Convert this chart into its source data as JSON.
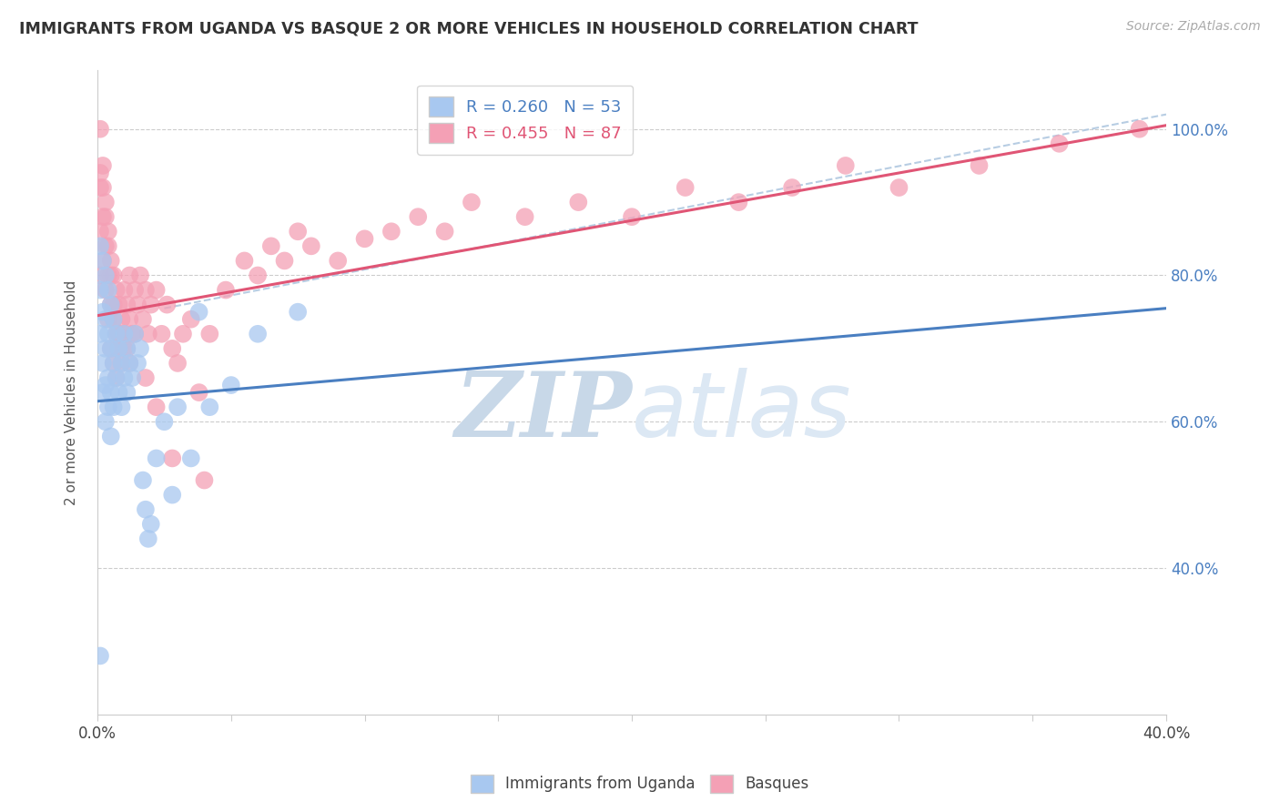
{
  "title": "IMMIGRANTS FROM UGANDA VS BASQUE 2 OR MORE VEHICLES IN HOUSEHOLD CORRELATION CHART",
  "source": "Source: ZipAtlas.com",
  "ylabel_label": "2 or more Vehicles in Household",
  "legend_entries": [
    {
      "label": "R = 0.260   N = 53",
      "color": "#a8c8f0"
    },
    {
      "label": "R = 0.455   N = 87",
      "color": "#f4a0b5"
    }
  ],
  "legend_labels_bottom": [
    "Immigrants from Uganda",
    "Basques"
  ],
  "watermark_zip": "ZIP",
  "watermark_atlas": "atlas",
  "blue_color": "#a8c8f0",
  "pink_color": "#f4a0b5",
  "blue_line_color": "#4a7fc1",
  "pink_line_color": "#e05575",
  "dashed_line_color": "#b0c8e0",
  "xlim": [
    0.0,
    0.4
  ],
  "ylim": [
    0.2,
    1.08
  ],
  "blue_scatter_x": [
    0.001,
    0.001,
    0.001,
    0.002,
    0.002,
    0.002,
    0.002,
    0.003,
    0.003,
    0.003,
    0.003,
    0.003,
    0.004,
    0.004,
    0.004,
    0.004,
    0.005,
    0.005,
    0.005,
    0.005,
    0.006,
    0.006,
    0.006,
    0.007,
    0.007,
    0.008,
    0.008,
    0.009,
    0.009,
    0.01,
    0.01,
    0.011,
    0.011,
    0.012,
    0.013,
    0.014,
    0.015,
    0.016,
    0.017,
    0.018,
    0.019,
    0.02,
    0.022,
    0.025,
    0.028,
    0.03,
    0.035,
    0.038,
    0.042,
    0.05,
    0.06,
    0.075,
    0.001
  ],
  "blue_scatter_y": [
    0.84,
    0.78,
    0.72,
    0.82,
    0.75,
    0.68,
    0.64,
    0.8,
    0.74,
    0.7,
    0.65,
    0.6,
    0.78,
    0.72,
    0.66,
    0.62,
    0.76,
    0.7,
    0.64,
    0.58,
    0.74,
    0.68,
    0.62,
    0.72,
    0.66,
    0.7,
    0.64,
    0.68,
    0.62,
    0.66,
    0.72,
    0.7,
    0.64,
    0.68,
    0.66,
    0.72,
    0.68,
    0.7,
    0.52,
    0.48,
    0.44,
    0.46,
    0.55,
    0.6,
    0.5,
    0.62,
    0.55,
    0.75,
    0.62,
    0.65,
    0.72,
    0.75,
    0.28
  ],
  "pink_scatter_x": [
    0.001,
    0.001,
    0.001,
    0.002,
    0.002,
    0.002,
    0.003,
    0.003,
    0.003,
    0.004,
    0.004,
    0.004,
    0.005,
    0.005,
    0.005,
    0.006,
    0.006,
    0.006,
    0.007,
    0.007,
    0.007,
    0.008,
    0.008,
    0.009,
    0.009,
    0.01,
    0.01,
    0.011,
    0.011,
    0.012,
    0.012,
    0.013,
    0.014,
    0.015,
    0.016,
    0.017,
    0.018,
    0.019,
    0.02,
    0.022,
    0.024,
    0.026,
    0.028,
    0.03,
    0.032,
    0.035,
    0.038,
    0.042,
    0.048,
    0.055,
    0.06,
    0.065,
    0.07,
    0.075,
    0.08,
    0.09,
    0.1,
    0.11,
    0.12,
    0.13,
    0.14,
    0.16,
    0.18,
    0.2,
    0.22,
    0.24,
    0.26,
    0.28,
    0.3,
    0.33,
    0.36,
    0.39,
    0.001,
    0.001,
    0.002,
    0.003,
    0.004,
    0.005,
    0.006,
    0.008,
    0.01,
    0.012,
    0.014,
    0.018,
    0.022,
    0.028,
    0.04
  ],
  "pink_scatter_y": [
    0.92,
    0.86,
    0.8,
    0.95,
    0.88,
    0.82,
    0.9,
    0.84,
    0.78,
    0.86,
    0.8,
    0.74,
    0.82,
    0.76,
    0.7,
    0.8,
    0.74,
    0.68,
    0.78,
    0.72,
    0.66,
    0.76,
    0.7,
    0.74,
    0.68,
    0.72,
    0.78,
    0.7,
    0.76,
    0.74,
    0.8,
    0.72,
    0.78,
    0.76,
    0.8,
    0.74,
    0.78,
    0.72,
    0.76,
    0.78,
    0.72,
    0.76,
    0.7,
    0.68,
    0.72,
    0.74,
    0.64,
    0.72,
    0.78,
    0.82,
    0.8,
    0.84,
    0.82,
    0.86,
    0.84,
    0.82,
    0.85,
    0.86,
    0.88,
    0.86,
    0.9,
    0.88,
    0.9,
    0.88,
    0.92,
    0.9,
    0.92,
    0.95,
    0.92,
    0.95,
    0.98,
    1.0,
    1.0,
    0.94,
    0.92,
    0.88,
    0.84,
    0.8,
    0.76,
    0.72,
    0.7,
    0.68,
    0.72,
    0.66,
    0.62,
    0.55,
    0.52
  ],
  "blue_line_x": [
    0.0,
    0.4
  ],
  "blue_line_y": [
    0.628,
    0.755
  ],
  "pink_line_x": [
    0.0,
    0.4
  ],
  "pink_line_y": [
    0.745,
    1.005
  ],
  "dashed_line_x": [
    0.025,
    0.4
  ],
  "dashed_line_y": [
    0.755,
    1.02
  ]
}
